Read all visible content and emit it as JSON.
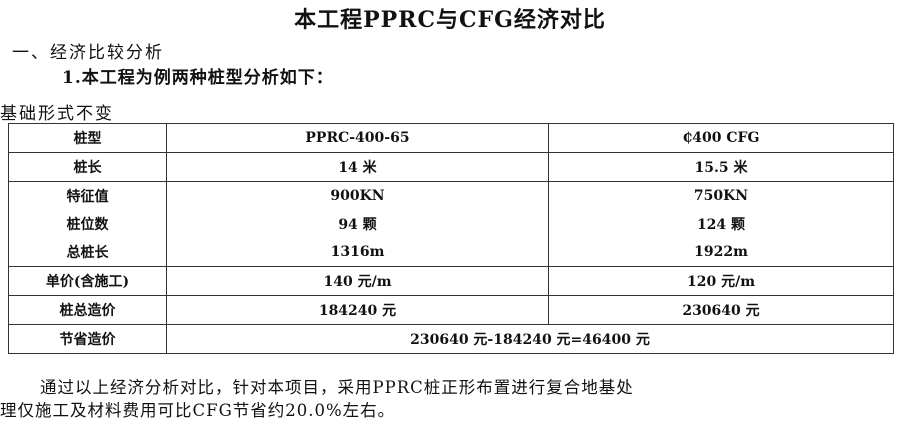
{
  "title": "本工程PPRC与CFG经济对比",
  "section_heading": "一、经济比较分析",
  "subheading": "1.本工程为例两种桩型分析如下：",
  "basis_note": "基础形式不变",
  "table": {
    "header": [
      "桩型",
      "PPRC-400-65",
      "₵400 CFG"
    ],
    "rows": [
      [
        "桩长",
        "14 米",
        "15.5 米"
      ],
      [
        "特征值",
        "900KN",
        "750KN"
      ],
      [
        "桩位数",
        "94 颗",
        "124 颗"
      ],
      [
        "总桩长",
        "1316m",
        "1922m"
      ],
      [
        "单价(含施工)",
        "140 元/m",
        "120 元/m"
      ],
      [
        "桩总造价",
        "184240 元",
        "230640 元"
      ]
    ],
    "savings_label": "节省造价",
    "savings_value": "230640 元-184240 元=46400 元"
  },
  "conclusion_line1": "通过以上经济分析对比，针对本项目，采用PPRC桩正形布置进行复合地基处",
  "conclusion_line2": "理仅施工及材料费用可比CFG节省约20.0%左右。"
}
